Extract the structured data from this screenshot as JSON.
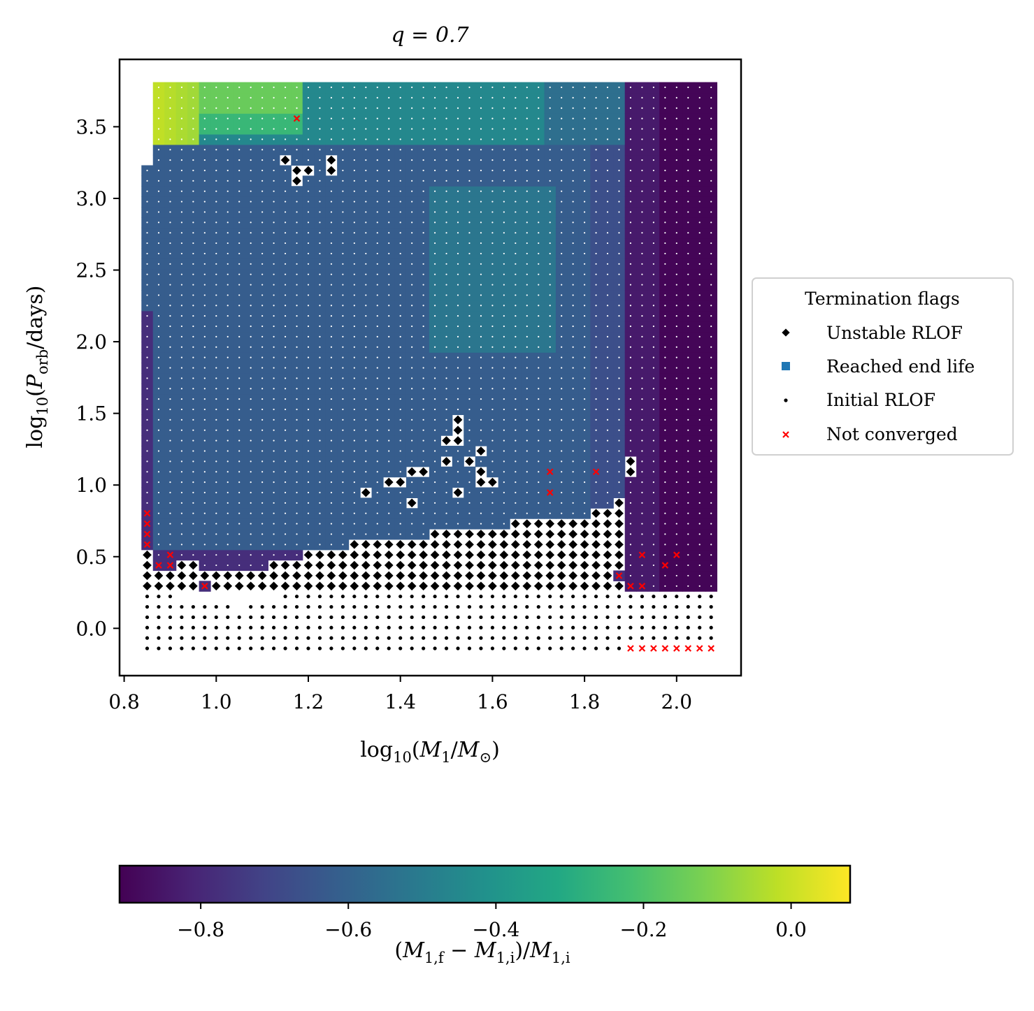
{
  "chart_data": {
    "type": "scatter",
    "title": "q = 0.7",
    "xlabel": "log10(M1/M⊙)",
    "ylabel": "log10(Porb/days)",
    "xlim": [
      0.79,
      2.14
    ],
    "ylim": [
      -0.33,
      3.97
    ],
    "x_ticks": [
      0.8,
      1.0,
      1.2,
      1.4,
      1.6,
      1.8,
      2.0
    ],
    "x_tick_labels": [
      "0.8",
      "1.0",
      "1.2",
      "1.4",
      "1.6",
      "1.8",
      "2.0"
    ],
    "y_ticks": [
      0.0,
      0.5,
      1.0,
      1.5,
      2.0,
      2.5,
      3.0,
      3.5
    ],
    "y_tick_labels": [
      "0.0",
      "0.5",
      "1.0",
      "1.5",
      "2.0",
      "2.5",
      "3.0",
      "3.5"
    ],
    "grid": {
      "x_start": 0.85,
      "x_step": 0.025,
      "x_count": 50,
      "y_start": -0.14,
      "y_step": 0.0725,
      "y_count": 55
    },
    "legend": {
      "title": "Termination flags",
      "placement": "center-right outside",
      "entries": [
        {
          "label": "Unstable RLOF",
          "marker": "diamond",
          "color": "#000000"
        },
        {
          "label": "Reached end life",
          "marker": "square",
          "color": "#1f77b4"
        },
        {
          "label": "Initial RLOF",
          "marker": "dot",
          "color": "#000000"
        },
        {
          "label": "Not converged",
          "marker": "x",
          "color": "#ff0000"
        }
      ]
    },
    "colorbar": {
      "label": "(M1,f − M1,i)/M1,i",
      "range": [
        -0.91,
        0.08
      ],
      "colormap": "viridis",
      "ticks": [
        -0.8,
        -0.6,
        -0.4,
        -0.2,
        0.0
      ],
      "tick_labels": [
        "−0.8",
        "−0.6",
        "−0.4",
        "−0.2",
        "0.0"
      ]
    },
    "regions": {
      "initial_rlof_below_logP": 0.29,
      "unstable_boundary": [
        [
          0.85,
          0.52
        ],
        [
          1.05,
          0.39
        ],
        [
          1.1,
          0.42
        ],
        [
          1.2,
          0.53
        ],
        [
          1.3,
          0.6
        ],
        [
          1.4,
          0.6
        ],
        [
          1.5,
          0.68
        ],
        [
          1.6,
          0.72
        ],
        [
          1.7,
          0.76
        ],
        [
          1.8,
          0.8
        ],
        [
          1.88,
          0.86
        ],
        [
          1.9,
          0.45
        ]
      ],
      "unstable_islands": [
        [
          1.15,
          3.28
        ],
        [
          1.175,
          3.22
        ],
        [
          1.175,
          3.14
        ],
        [
          1.2,
          3.22
        ],
        [
          1.25,
          3.28
        ],
        [
          1.25,
          3.22
        ],
        [
          1.325,
          0.93
        ],
        [
          1.375,
          1.0
        ],
        [
          1.4,
          1.0
        ],
        [
          1.425,
          1.07
        ],
        [
          1.425,
          0.86
        ],
        [
          1.45,
          1.07
        ],
        [
          1.5,
          1.14
        ],
        [
          1.5,
          1.28
        ],
        [
          1.525,
          1.35
        ],
        [
          1.525,
          1.43
        ],
        [
          1.525,
          1.28
        ],
        [
          1.525,
          0.93
        ],
        [
          1.55,
          1.14
        ],
        [
          1.575,
          1.21
        ],
        [
          1.575,
          1.07
        ],
        [
          1.575,
          1.0
        ],
        [
          1.6,
          1.0
        ],
        [
          1.9,
          1.14
        ],
        [
          1.9,
          1.07
        ],
        [
          1.875,
          0.86
        ]
      ],
      "not_converged": [
        [
          0.85,
          0.79
        ],
        [
          0.85,
          0.72
        ],
        [
          0.85,
          0.65
        ],
        [
          0.85,
          0.57
        ],
        [
          0.875,
          0.43
        ],
        [
          0.9,
          0.5
        ],
        [
          0.9,
          0.43
        ],
        [
          0.975,
          0.29
        ],
        [
          1.175,
          3.58
        ],
        [
          1.725,
          1.07
        ],
        [
          1.725,
          0.93
        ],
        [
          1.825,
          1.07
        ],
        [
          1.875,
          0.36
        ],
        [
          1.9,
          0.29
        ],
        [
          1.925,
          0.29
        ],
        [
          1.925,
          0.5
        ],
        [
          1.975,
          0.43
        ],
        [
          2.0,
          0.5
        ],
        [
          1.9,
          -0.14
        ],
        [
          1.925,
          -0.14
        ],
        [
          1.95,
          -0.14
        ],
        [
          1.975,
          -0.14
        ],
        [
          2.0,
          -0.14
        ],
        [
          2.025,
          -0.14
        ],
        [
          2.05,
          -0.14
        ],
        [
          2.075,
          -0.14
        ]
      ],
      "value_field_description_values": {
        "top_left_corner": 0.0,
        "upper_left_band": -0.15,
        "top_middle": -0.45,
        "main_body": -0.62,
        "left_edge": -0.78,
        "right_band": -0.88,
        "lower_band": -0.78
      }
    }
  }
}
